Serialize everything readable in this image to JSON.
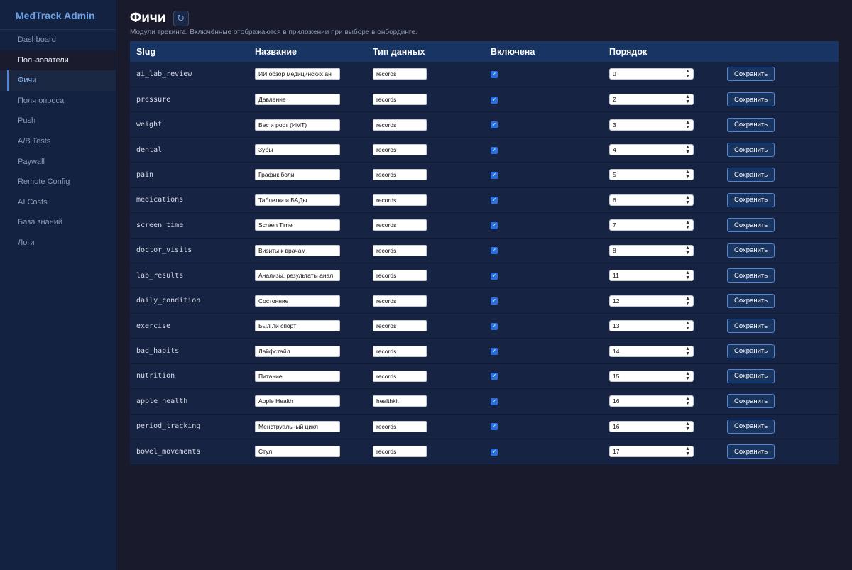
{
  "sidebar": {
    "brand": "MedTrack Admin",
    "items": [
      {
        "label": "Dashboard"
      },
      {
        "label": "Пользователи"
      },
      {
        "label": "Фичи"
      },
      {
        "label": "Поля опроса"
      },
      {
        "label": "Push"
      },
      {
        "label": "A/B Tests"
      },
      {
        "label": "Paywall"
      },
      {
        "label": "Remote Config"
      },
      {
        "label": "AI Costs"
      },
      {
        "label": "База знаний"
      },
      {
        "label": "Логи"
      }
    ]
  },
  "header": {
    "title": "Фичи",
    "refresh_icon": "refresh-icon",
    "subtitle": "Модули трекинга. Включённые отображаются в приложении при выборе в онбординге."
  },
  "table": {
    "columns": [
      "Slug",
      "Название",
      "Тип данных",
      "Включена",
      "Порядок",
      ""
    ],
    "save_label": "Сохранить",
    "rows": [
      {
        "slug": "ai_lab_review",
        "name": "ИИ обзор медицинских ан",
        "type": "records",
        "enabled": true,
        "order": "0"
      },
      {
        "slug": "pressure",
        "name": "Давление",
        "type": "records",
        "enabled": true,
        "order": "2"
      },
      {
        "slug": "weight",
        "name": "Вес и рост (ИМТ)",
        "type": "records",
        "enabled": true,
        "order": "3"
      },
      {
        "slug": "dental",
        "name": "Зубы",
        "type": "records",
        "enabled": true,
        "order": "4"
      },
      {
        "slug": "pain",
        "name": "График боли",
        "type": "records",
        "enabled": true,
        "order": "5"
      },
      {
        "slug": "medications",
        "name": "Таблетки и БАДы",
        "type": "records",
        "enabled": true,
        "order": "6"
      },
      {
        "slug": "screen_time",
        "name": "Screen Time",
        "type": "records",
        "enabled": true,
        "order": "7"
      },
      {
        "slug": "doctor_visits",
        "name": "Визиты к врачам",
        "type": "records",
        "enabled": true,
        "order": "8"
      },
      {
        "slug": "lab_results",
        "name": "Анализы, результаты анал",
        "type": "records",
        "enabled": true,
        "order": "11"
      },
      {
        "slug": "daily_condition",
        "name": "Состояние",
        "type": "records",
        "enabled": true,
        "order": "12"
      },
      {
        "slug": "exercise",
        "name": "Был ли спорт",
        "type": "records",
        "enabled": true,
        "order": "13"
      },
      {
        "slug": "bad_habits",
        "name": "Лайфстайл",
        "type": "records",
        "enabled": true,
        "order": "14"
      },
      {
        "slug": "nutrition",
        "name": "Питание",
        "type": "records",
        "enabled": true,
        "order": "15"
      },
      {
        "slug": "apple_health",
        "name": "Apple Health",
        "type": "healthkit",
        "enabled": true,
        "order": "16"
      },
      {
        "slug": "period_tracking",
        "name": "Менструальный цикл",
        "type": "records",
        "enabled": true,
        "order": "16"
      },
      {
        "slug": "bowel_movements",
        "name": "Стул",
        "type": "records",
        "enabled": true,
        "order": "17"
      }
    ]
  },
  "colors": {
    "accent": "#4f86d8",
    "brand": "#6aa0e6",
    "checkbox": "#2a6fe0"
  }
}
